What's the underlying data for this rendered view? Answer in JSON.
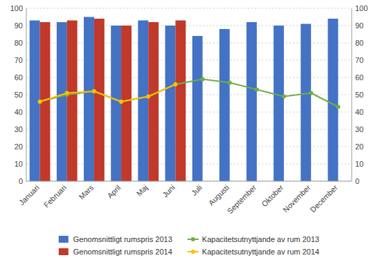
{
  "chart_data": {
    "type": "bar",
    "categories": [
      "Januari",
      "Februari",
      "Mars",
      "April",
      "Maj",
      "Juni",
      "Juli",
      "Augusti",
      "September",
      "Oktober",
      "November",
      "December"
    ],
    "series": [
      {
        "name": "Genomsnittligt rumspris 2013",
        "type": "bar",
        "color": "#4472C4",
        "values": [
          93,
          92,
          95,
          90,
          93,
          90,
          84,
          88,
          92,
          90,
          91,
          94
        ]
      },
      {
        "name": "Genomsnittligt rumspris 2014",
        "type": "bar",
        "color": "#C0392B",
        "values": [
          92,
          93,
          94,
          90,
          92,
          93,
          null,
          null,
          null,
          null,
          null,
          null
        ]
      },
      {
        "name": "Kapacitetsutnyttjande av rum 2013",
        "type": "line",
        "axis": "y2",
        "marker": "circle",
        "color": "#70AD47",
        "values": [
          46,
          50,
          52,
          46,
          49,
          56,
          59,
          57,
          53,
          49,
          51,
          43
        ]
      },
      {
        "name": "Kapacitetsutnyttjande av rum 2014",
        "type": "line",
        "axis": "y2",
        "marker": "circle",
        "color": "#FFC000",
        "values": [
          46,
          51,
          52,
          46,
          49,
          56,
          null,
          null,
          null,
          null,
          null,
          null
        ]
      }
    ],
    "ylim": [
      0,
      100
    ],
    "yticks": [
      0,
      10,
      20,
      30,
      40,
      50,
      60,
      70,
      80,
      90,
      100
    ],
    "y2lim": [
      0,
      100
    ],
    "y2ticks": [
      0,
      10,
      20,
      30,
      40,
      50,
      60,
      70,
      80,
      90,
      100
    ],
    "grid": true,
    "legend": "bottom"
  }
}
